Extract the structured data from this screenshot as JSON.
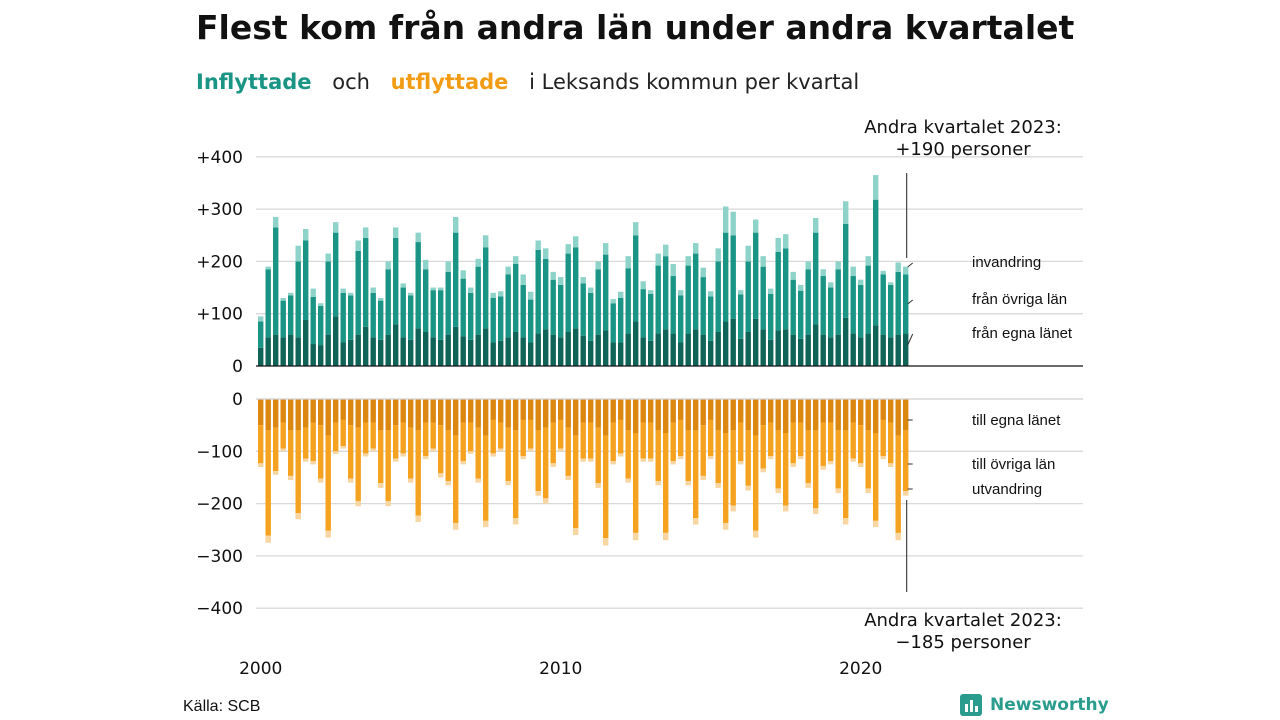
{
  "title": "Flest kom från andra län under andra kvartalet",
  "subtitle": {
    "in": "Inflyttade",
    "and": "och",
    "out": "utflyttade",
    "rest": "i Leksands kommun per kvartal"
  },
  "source": "Källa: SCB",
  "brand": "Newsworthy",
  "colors": {
    "in_same_lan": "#0f6457",
    "in_other_lan": "#1a9484",
    "in_immigration": "#8dd3c9",
    "out_same_lan": "#db8710",
    "out_other_lan": "#f4a21f",
    "out_emigration": "#f7d6a1",
    "grid": "#d9d9d9",
    "brand": "#2a9c8e"
  },
  "chart_data": {
    "type": "bar",
    "stacked": true,
    "x_start": "2000 Q1",
    "x_end": "2023 Q2",
    "x_ticks": [
      "2000",
      "2010",
      "2020"
    ],
    "top_yticks": [
      "+400",
      "+300",
      "+200",
      "+100",
      "0"
    ],
    "top_ylim": [
      0,
      400
    ],
    "bottom_yticks": [
      "0",
      "−100",
      "−200",
      "−300",
      "−400"
    ],
    "bottom_ylim": [
      -400,
      0
    ],
    "series_labels_in": [
      "invandring",
      "från övriga län",
      "från egna länet"
    ],
    "series_labels_out": [
      "till egna länet",
      "till övriga län",
      "utvandring"
    ],
    "annotation_in": [
      "Andra kvartalet 2023:",
      "+190 personer"
    ],
    "annotation_out": [
      "Andra kvartalet 2023:",
      "−185 personer"
    ],
    "in_totals": [
      95,
      190,
      285,
      130,
      140,
      230,
      262,
      148,
      120,
      215,
      275,
      148,
      140,
      240,
      265,
      150,
      130,
      200,
      265,
      158,
      140,
      255,
      203,
      150,
      150,
      200,
      285,
      183,
      150,
      205,
      250,
      140,
      143,
      190,
      210,
      175,
      142,
      240,
      225,
      180,
      170,
      233,
      248,
      170,
      150,
      200,
      235,
      128,
      142,
      210,
      275,
      162,
      145,
      215,
      232,
      195,
      145,
      210,
      235,
      188,
      143,
      225,
      305,
      295,
      145,
      230,
      280,
      210,
      148,
      245,
      252,
      180,
      155,
      200,
      283,
      185,
      160,
      200,
      315,
      190,
      165,
      210,
      365,
      182,
      160,
      198,
      190
    ],
    "in_same_lan": [
      35,
      55,
      60,
      55,
      60,
      55,
      88,
      42,
      40,
      60,
      95,
      45,
      50,
      60,
      75,
      55,
      50,
      60,
      80,
      55,
      50,
      72,
      65,
      55,
      50,
      60,
      75,
      57,
      50,
      60,
      72,
      45,
      48,
      55,
      65,
      55,
      45,
      62,
      70,
      60,
      55,
      65,
      72,
      58,
      48,
      60,
      68,
      45,
      45,
      62,
      85,
      55,
      48,
      62,
      70,
      62,
      45,
      62,
      70,
      60,
      48,
      65,
      85,
      90,
      52,
      65,
      90,
      70,
      50,
      68,
      70,
      60,
      52,
      60,
      80,
      60,
      55,
      60,
      92,
      62,
      55,
      62,
      78,
      60,
      55,
      60,
      62
    ],
    "in_other_lan": [
      50,
      130,
      205,
      70,
      75,
      145,
      152,
      90,
      75,
      140,
      160,
      95,
      85,
      160,
      170,
      85,
      75,
      125,
      165,
      95,
      85,
      165,
      120,
      90,
      95,
      120,
      180,
      110,
      90,
      130,
      155,
      85,
      85,
      120,
      130,
      100,
      82,
      160,
      135,
      105,
      100,
      150,
      155,
      100,
      92,
      125,
      145,
      75,
      85,
      125,
      165,
      92,
      90,
      130,
      140,
      110,
      90,
      130,
      145,
      110,
      85,
      135,
      170,
      160,
      85,
      135,
      165,
      120,
      88,
      150,
      155,
      105,
      92,
      125,
      175,
      112,
      95,
      125,
      180,
      110,
      100,
      130,
      240,
      115,
      100,
      120,
      113
    ],
    "out_totals": [
      130,
      275,
      145,
      100,
      155,
      230,
      120,
      125,
      160,
      265,
      105,
      95,
      160,
      205,
      110,
      100,
      170,
      205,
      120,
      110,
      160,
      235,
      115,
      100,
      150,
      165,
      250,
      125,
      105,
      160,
      245,
      110,
      100,
      165,
      240,
      115,
      100,
      185,
      200,
      130,
      100,
      155,
      260,
      120,
      120,
      170,
      280,
      125,
      110,
      160,
      270,
      120,
      120,
      165,
      270,
      125,
      115,
      165,
      240,
      155,
      115,
      170,
      250,
      215,
      125,
      175,
      265,
      140,
      115,
      180,
      215,
      130,
      115,
      170,
      220,
      135,
      125,
      180,
      240,
      120,
      130,
      180,
      245,
      115,
      130,
      270,
      185
    ],
    "out_same_lan": [
      50,
      60,
      55,
      45,
      60,
      60,
      55,
      45,
      50,
      70,
      45,
      40,
      50,
      55,
      45,
      45,
      60,
      60,
      50,
      45,
      55,
      60,
      45,
      45,
      50,
      60,
      70,
      45,
      45,
      55,
      70,
      40,
      45,
      55,
      60,
      40,
      40,
      60,
      55,
      45,
      40,
      55,
      70,
      45,
      45,
      55,
      70,
      45,
      40,
      60,
      65,
      45,
      45,
      60,
      65,
      45,
      40,
      60,
      60,
      50,
      40,
      60,
      65,
      60,
      45,
      60,
      70,
      50,
      45,
      60,
      65,
      45,
      45,
      60,
      60,
      45,
      45,
      60,
      60,
      45,
      50,
      60,
      65,
      40,
      45,
      70,
      60
    ]
  }
}
